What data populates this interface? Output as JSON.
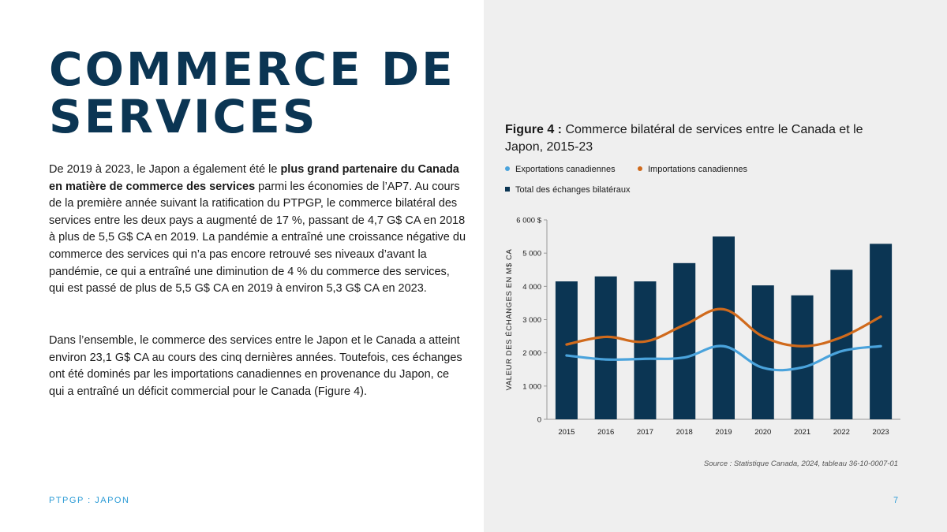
{
  "page": {
    "title_line1": "COMMERCE DE",
    "title_line2": "SERVICES",
    "para1_a": "De 2019 à 2023, le Japon a également été le ",
    "para1_bold": "plus grand partenaire du Canada en matière de commerce des services",
    "para1_b": " parmi les économies de l’AP7. Au cours de la première année suivant la ratification du PTPGP, le commerce bilatéral des services entre les deux pays a augmenté de 17 %, passant de 4,7 G$ CA en 2018 à plus de 5,5 G$ CA en 2019. La pandémie a entraîné une croissance négative du commerce des services qui n’a pas encore retrouvé ses niveaux d’avant la pandémie, ce qui a entraîné une diminution de 4 % du commerce des services, qui est passé de plus de 5,5 G$ CA en 2019 à environ 5,3 G$ CA en 2023.",
    "para2": "Dans l’ensemble, le commerce des services entre le Japon et le Canada a atteint environ 23,1 G$ CA au cours des cinq dernières années. Toutefois, ces échanges ont été dominés par les importations canadiennes en provenance du Japon, ce qui a entraîné un déficit commercial pour le Canada (Figure 4).",
    "footer_left": "PTPGP : JAPON",
    "page_number": "7"
  },
  "figure": {
    "label": "Figure 4 :",
    "caption": " Commerce bilatéral de services entre le Canada et le Japon, 2015-23",
    "source": "Source : Statistique Canada, 2024, tableau 36-10-0007-01"
  },
  "colors": {
    "bars": "#0b3553",
    "exports": "#4aa3dc",
    "imports": "#d06a1c",
    "title": "#0b3553",
    "accent": "#2b9bd6"
  },
  "chart_data": {
    "type": "bar",
    "categories": [
      "2015",
      "2016",
      "2017",
      "2018",
      "2019",
      "2020",
      "2021",
      "2022",
      "2023"
    ],
    "series": [
      {
        "name": "Total des échanges bilatéraux",
        "kind": "bar",
        "values": [
          4150,
          4300,
          4150,
          4700,
          5500,
          4030,
          3730,
          4500,
          5280
        ]
      },
      {
        "name": "Exportations canadiennes",
        "kind": "line",
        "values": [
          1920,
          1800,
          1820,
          1860,
          2200,
          1550,
          1560,
          2050,
          2200
        ]
      },
      {
        "name": "Importations canadiennes",
        "kind": "line",
        "values": [
          2250,
          2480,
          2340,
          2840,
          3310,
          2490,
          2200,
          2470,
          3090
        ]
      }
    ],
    "ylabel": "VALEUR DES ÉCHANGES EN M$ CA",
    "ylim": [
      0,
      6000
    ],
    "yticks": [
      0,
      1000,
      2000,
      3000,
      4000,
      5000,
      6000
    ],
    "ytick_labels": [
      "0",
      "1 000",
      "2 000",
      "3 000",
      "4 000",
      "5 000",
      "6 000 $"
    ],
    "grid": false,
    "legend_position": "top"
  }
}
